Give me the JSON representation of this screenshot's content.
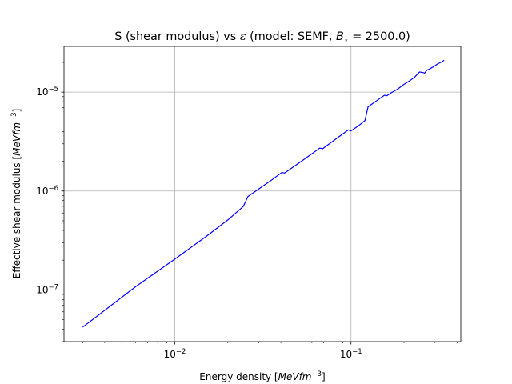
{
  "chart_data": {
    "type": "line",
    "title_parts": {
      "pre": "S (shear modulus) vs ",
      "eps": "ε",
      "mid": " (model: SEMF, ",
      "b": "B",
      "star": "⋆",
      "post": " = 2500.0)"
    },
    "xlabel_parts": {
      "pre": "Energy density [",
      "unit": "MeVfm",
      "exp": "−3",
      "post": "]"
    },
    "ylabel_parts": {
      "pre": "Effective shear modulus [",
      "unit": "MeVfm",
      "exp": "−3",
      "post": "]"
    },
    "xscale": "log",
    "yscale": "log",
    "xlim": [
      0.00235,
      0.42
    ],
    "ylim": [
      3e-08,
      2.9e-05
    ],
    "grid": true,
    "x_ticks": [
      {
        "value": 0.01,
        "mantissa": "10",
        "exp": "−2"
      },
      {
        "value": 0.1,
        "mantissa": "10",
        "exp": "−1"
      }
    ],
    "y_ticks": [
      {
        "value": 1e-07,
        "mantissa": "10",
        "exp": "−7"
      },
      {
        "value": 1e-06,
        "mantissa": "10",
        "exp": "−6"
      },
      {
        "value": 1e-05,
        "mantissa": "10",
        "exp": "−5"
      }
    ],
    "series": [
      {
        "color": "#0000ff",
        "x": [
          0.003,
          0.006,
          0.01,
          0.015,
          0.02,
          0.0245,
          0.026,
          0.03,
          0.035,
          0.0405,
          0.042,
          0.05,
          0.06,
          0.0665,
          0.069,
          0.08,
          0.0965,
          0.1,
          0.11,
          0.12,
          0.125,
          0.14,
          0.155,
          0.16,
          0.17,
          0.185,
          0.2,
          0.215,
          0.23,
          0.245,
          0.255,
          0.262,
          0.27,
          0.28,
          0.29,
          0.3,
          0.31,
          0.32,
          0.33,
          0.338
        ],
        "y": [
          4.2e-08,
          1.08e-07,
          2.05e-07,
          3.45e-07,
          5.1e-07,
          7e-07,
          8.8e-07,
          1.05e-06,
          1.27e-06,
          1.54e-06,
          1.52e-06,
          1.89e-06,
          2.38e-06,
          2.72e-06,
          2.67e-06,
          3.25e-06,
          4.15e-06,
          4.05e-06,
          4.55e-06,
          5.15e-06,
          7.1e-06,
          8.2e-06,
          9.3e-06,
          9.2e-06,
          9.9e-06,
          1.08e-05,
          1.2e-05,
          1.3e-05,
          1.42e-05,
          1.6e-05,
          1.58e-05,
          1.56e-05,
          1.67e-05,
          1.72e-05,
          1.78e-05,
          1.85e-05,
          1.93e-05,
          1.98e-05,
          2.04e-05,
          2.1e-05
        ]
      }
    ]
  }
}
